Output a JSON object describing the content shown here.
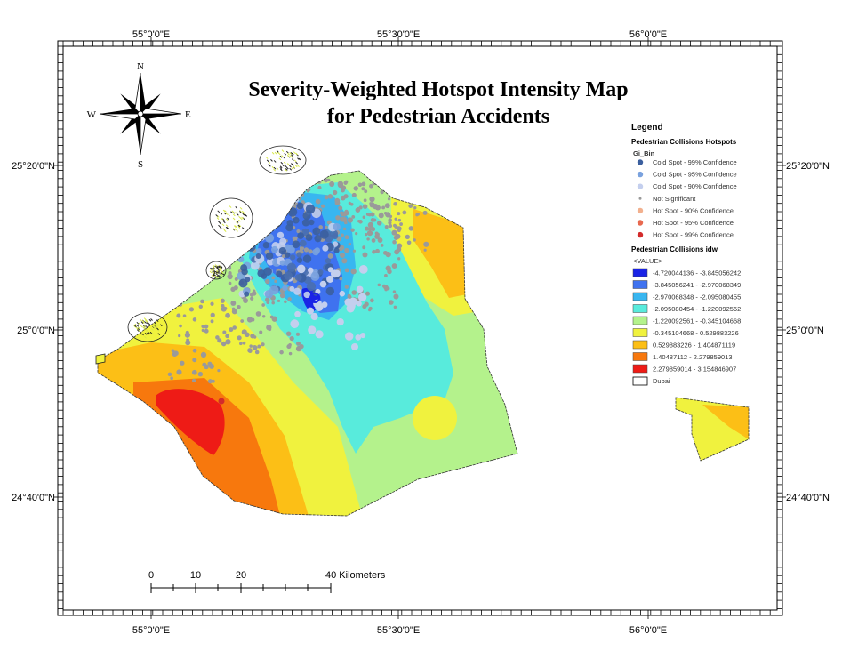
{
  "map": {
    "title_line1": "Severity-Weighted Hotspot Intensity Map",
    "title_line2": "for Pedestrian Accidents",
    "top_longitudes": [
      "55°0'0\"E",
      "55°30'0\"E",
      "56°0'0\"E"
    ],
    "bottom_longitudes": [
      "55°0'0\"E",
      "55°30'0\"E",
      "56°0'0\"E"
    ],
    "left_latitudes": [
      "25°20'0\"N",
      "25°0'0\"N",
      "24°40'0\"N"
    ],
    "right_latitudes": [
      "25°20'0\"N",
      "25°0'0\"N",
      "24°40'0\"N"
    ]
  },
  "compass": {
    "n": "N",
    "s": "S",
    "e": "E",
    "w": "W"
  },
  "scale_bar": {
    "ticks": [
      "0",
      "10",
      "20",
      "40 Kilometers"
    ]
  },
  "legend": {
    "title": "Legend",
    "hotspot_layer": "Pedestrian Collisions Hotspots",
    "hotspot_field": "Gi_Bin",
    "hotspot_items": [
      {
        "label": "Cold Spot - 99% Confidence",
        "color": "#3b5f9e",
        "size": 3.2
      },
      {
        "label": "Cold Spot - 95% Confidence",
        "color": "#7aa2de",
        "size": 3.2
      },
      {
        "label": "Cold Spot - 90% Confidence",
        "color": "#c4cfee",
        "size": 3.2
      },
      {
        "label": "Not Significant",
        "color": "#9a9a9a",
        "size": 1.5
      },
      {
        "label": "Hot Spot - 90% Confidence",
        "color": "#f2b08e",
        "size": 3.2
      },
      {
        "label": "Hot Spot - 95% Confidence",
        "color": "#e8694f",
        "size": 3.2
      },
      {
        "label": "Hot Spot - 99% Confidence",
        "color": "#d32b2b",
        "size": 3.2
      }
    ],
    "idw_layer": "Pedestrian Collisions idw",
    "idw_field": "<VALUE>",
    "idw_items": [
      {
        "label": "-4.720044136 - -3.845056242",
        "color": "#1a23e6"
      },
      {
        "label": "-3.845056241 - -2.970068349",
        "color": "#3f72ef"
      },
      {
        "label": "-2.970068348 - -2.095080455",
        "color": "#38b6f0"
      },
      {
        "label": "-2.095080454 - -1.220092562",
        "color": "#58ebdc"
      },
      {
        "label": "-1.220092561 - -0.345104668",
        "color": "#b4f28c"
      },
      {
        "label": "-0.345104668 - 0.529883226",
        "color": "#f0f23e"
      },
      {
        "label": "0.529883226 - 1.404871119",
        "color": "#fcbf16"
      },
      {
        "label": "1.40487112 - 2.279859013",
        "color": "#f7780d"
      },
      {
        "label": "2.279859014 - 3.154846907",
        "color": "#ee1b16"
      }
    ],
    "boundary_label": "Dubai"
  }
}
